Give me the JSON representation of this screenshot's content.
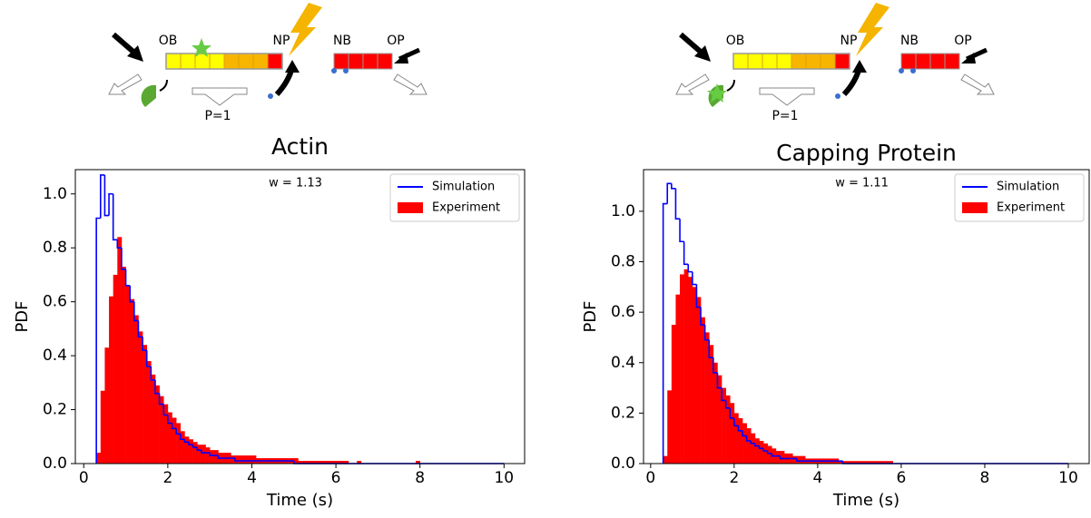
{
  "chart_data": [
    {
      "type": "histogram",
      "title": "Actin",
      "xlabel": "Time (s)",
      "ylabel": "PDF",
      "annotation": "w = 1.13",
      "diagram_labels": [
        "OB",
        "NP",
        "NB",
        "OP",
        "P=1"
      ],
      "xlim": [
        -0.2,
        10.49
      ],
      "ylim": [
        0,
        1.09
      ],
      "xticks": [
        0,
        2,
        4,
        6,
        8,
        10
      ],
      "yticks": [
        {
          "value": 0,
          "label": "0.0"
        },
        0.2,
        0.4,
        0.6,
        0.8,
        {
          "value": 1,
          "label": "1.0"
        }
      ],
      "legend": "upper right",
      "bins": [
        0.3,
        0.4,
        0.5,
        0.6,
        0.7,
        0.8,
        0.9,
        1,
        1.1,
        1.2,
        1.3,
        1.4,
        1.5,
        1.6,
        1.7,
        1.8,
        1.9,
        2,
        2.1,
        2.2,
        2.3,
        2.4,
        2.5,
        2.6,
        2.7,
        2.8,
        2.9,
        3,
        3.1,
        3.2,
        3.3,
        3.4,
        3.5,
        3.6,
        3.7,
        3.8,
        3.9,
        4,
        4.1,
        4.2,
        4.3,
        4.4,
        4.5,
        4.6,
        4.7,
        4.8,
        4.9,
        5,
        5.1,
        5.2,
        5.3,
        5.4,
        5.5,
        5.6,
        5.7,
        5.8,
        5.9,
        6,
        6.1,
        6.2,
        6.3,
        6.4,
        6.5,
        6.6,
        6.7,
        6.8,
        6.9,
        7,
        7.1,
        7.2,
        7.3,
        7.4,
        7.5,
        7.6,
        7.7,
        7.8,
        7.9,
        8,
        8.1,
        8.2,
        8.3,
        8.4,
        8.5,
        8.6,
        8.7,
        8.8,
        8.9,
        9,
        9.1,
        9.2,
        9.3,
        9.4,
        9.5,
        9.6,
        9.7,
        9.8,
        9.9,
        10
      ],
      "series": [
        {
          "name": "Simulation",
          "color": "#0000ff",
          "style": "step",
          "values": [
            0.91,
            1.07,
            0.92,
            1.0,
            0.83,
            0.8,
            0.72,
            0.66,
            0.6,
            0.53,
            0.47,
            0.42,
            0.36,
            0.31,
            0.26,
            0.22,
            0.18,
            0.15,
            0.13,
            0.11,
            0.09,
            0.08,
            0.07,
            0.06,
            0.05,
            0.04,
            0.04,
            0.03,
            0.03,
            0.02,
            0.02,
            0.02,
            0.02,
            0.01,
            0.01,
            0.01,
            0.01,
            0.01,
            0.01,
            0.01,
            0.01,
            0.01,
            0.01,
            0.01,
            0.01,
            0.01,
            0.01,
            0,
            0,
            0,
            0,
            0,
            0,
            0,
            0,
            0,
            0,
            0,
            0,
            0,
            0,
            0,
            0,
            0,
            0,
            0,
            0,
            0,
            0,
            0,
            0,
            0,
            0,
            0,
            0,
            0,
            0,
            0,
            0,
            0,
            0,
            0,
            0,
            0,
            0,
            0,
            0,
            0,
            0,
            0,
            0,
            0,
            0,
            0,
            0,
            0,
            0
          ]
        },
        {
          "name": "Experiment",
          "color": "#ff0000",
          "style": "filled",
          "values": [
            0.04,
            0.27,
            0.43,
            0.62,
            0.7,
            0.84,
            0.73,
            0.66,
            0.61,
            0.55,
            0.49,
            0.44,
            0.38,
            0.33,
            0.29,
            0.25,
            0.22,
            0.19,
            0.17,
            0.15,
            0.12,
            0.1,
            0.09,
            0.08,
            0.07,
            0.07,
            0.06,
            0.05,
            0.05,
            0.04,
            0.04,
            0.04,
            0.03,
            0.03,
            0.03,
            0.03,
            0.03,
            0.03,
            0.02,
            0.02,
            0.02,
            0.02,
            0.02,
            0.02,
            0.02,
            0.02,
            0.02,
            0.02,
            0.01,
            0.01,
            0.01,
            0.01,
            0.01,
            0.01,
            0.01,
            0.01,
            0.01,
            0.01,
            0.01,
            0.01,
            0,
            0,
            0.01,
            0,
            0,
            0,
            0,
            0,
            0,
            0,
            0,
            0,
            0,
            0,
            0,
            0,
            0.01,
            0,
            0,
            0,
            0,
            0,
            0,
            0,
            0,
            0,
            0,
            0,
            0,
            0,
            0,
            0,
            0,
            0,
            0,
            0,
            0
          ]
        }
      ]
    },
    {
      "type": "histogram",
      "title": "Capping Protein",
      "xlabel": "Time (s)",
      "ylabel": "PDF",
      "annotation": "w = 1.11",
      "diagram_labels": [
        "OB",
        "NP",
        "NB",
        "OP",
        "P=1"
      ],
      "xlim": [
        -0.17,
        10.5
      ],
      "ylim": [
        0,
        1.165
      ],
      "xticks": [
        0,
        2,
        4,
        6,
        8,
        10
      ],
      "yticks": [
        {
          "value": 0,
          "label": "0.0"
        },
        0.2,
        0.4,
        0.6,
        0.8,
        {
          "value": 1,
          "label": "1.0"
        }
      ],
      "legend": "upper right",
      "bins": [
        0.3,
        0.4,
        0.5,
        0.6,
        0.7,
        0.8,
        0.9,
        1,
        1.1,
        1.2,
        1.3,
        1.4,
        1.5,
        1.6,
        1.7,
        1.8,
        1.9,
        2,
        2.1,
        2.2,
        2.3,
        2.4,
        2.5,
        2.6,
        2.7,
        2.8,
        2.9,
        3,
        3.1,
        3.2,
        3.3,
        3.4,
        3.5,
        3.6,
        3.7,
        3.8,
        3.9,
        4,
        4.1,
        4.2,
        4.3,
        4.4,
        4.5,
        4.6,
        4.7,
        4.8,
        4.9,
        5,
        5.1,
        5.2,
        5.3,
        5.4,
        5.5,
        5.6,
        5.7,
        5.8,
        5.9,
        6,
        6.1,
        6.2,
        6.3,
        6.4,
        6.5,
        6.6,
        6.7,
        6.8,
        6.9,
        7,
        7.1,
        7.2,
        7.3,
        7.4,
        7.5,
        7.6,
        7.7,
        7.8,
        7.9,
        8,
        8.1,
        8.2,
        8.3,
        8.4,
        8.5,
        8.6,
        8.7,
        8.8,
        8.9,
        9,
        9.1,
        9.2,
        9.3,
        9.4,
        9.5,
        9.6,
        9.7,
        9.8,
        9.9,
        10
      ],
      "series": [
        {
          "name": "Simulation",
          "color": "#0000ff",
          "style": "step",
          "values": [
            1.03,
            1.11,
            1.09,
            0.97,
            0.88,
            0.79,
            0.76,
            0.71,
            0.62,
            0.55,
            0.49,
            0.42,
            0.36,
            0.3,
            0.25,
            0.22,
            0.18,
            0.15,
            0.13,
            0.11,
            0.09,
            0.08,
            0.07,
            0.06,
            0.05,
            0.04,
            0.03,
            0.03,
            0.02,
            0.02,
            0.02,
            0.02,
            0.01,
            0.01,
            0.01,
            0.01,
            0.01,
            0.01,
            0.01,
            0.01,
            0.01,
            0.01,
            0.01,
            0,
            0,
            0,
            0,
            0,
            0,
            0,
            0,
            0,
            0,
            0,
            0,
            0,
            0,
            0,
            0,
            0,
            0,
            0,
            0,
            0,
            0,
            0,
            0,
            0,
            0,
            0,
            0,
            0,
            0,
            0,
            0,
            0,
            0,
            0,
            0,
            0,
            0,
            0,
            0,
            0,
            0,
            0,
            0,
            0,
            0,
            0,
            0,
            0,
            0,
            0,
            0,
            0,
            0
          ]
        },
        {
          "name": "Experiment",
          "color": "#ff0000",
          "style": "filled",
          "values": [
            0.03,
            0.29,
            0.55,
            0.67,
            0.75,
            0.77,
            0.74,
            0.7,
            0.66,
            0.58,
            0.52,
            0.47,
            0.4,
            0.35,
            0.3,
            0.27,
            0.24,
            0.2,
            0.18,
            0.16,
            0.14,
            0.12,
            0.1,
            0.09,
            0.08,
            0.07,
            0.06,
            0.05,
            0.05,
            0.04,
            0.04,
            0.03,
            0.03,
            0.03,
            0.02,
            0.02,
            0.02,
            0.02,
            0.02,
            0.02,
            0.02,
            0.02,
            0.01,
            0.01,
            0.01,
            0.01,
            0.01,
            0.01,
            0.01,
            0.01,
            0.01,
            0.01,
            0.01,
            0.01,
            0.01,
            0,
            0,
            0,
            0,
            0,
            0,
            0,
            0,
            0,
            0,
            0,
            0,
            0,
            0,
            0,
            0,
            0,
            0,
            0,
            0,
            0,
            0,
            0,
            0,
            0,
            0,
            0,
            0,
            0,
            0,
            0,
            0,
            0,
            0,
            0,
            0,
            0,
            0,
            0,
            0,
            0,
            0
          ]
        }
      ]
    }
  ]
}
